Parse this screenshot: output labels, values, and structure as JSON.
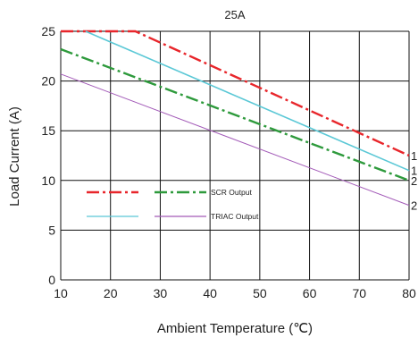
{
  "chart_data": {
    "type": "line",
    "title": "25A",
    "xlabel": "Ambient Temperature (℃)",
    "ylabel": "Load Current (A)",
    "xlim": [
      10,
      80
    ],
    "ylim": [
      0,
      25
    ],
    "x_ticks": [
      "10",
      "20",
      "30",
      "40",
      "50",
      "60",
      "70",
      "80"
    ],
    "y_ticks": [
      "0",
      "5",
      "10",
      "15",
      "20",
      "25"
    ],
    "grid": true,
    "series": [
      {
        "name": "1",
        "color": "#e8262b",
        "style": "dashdot",
        "width": 2.4,
        "x": [
          10,
          25,
          80
        ],
        "y": [
          25,
          25,
          12.5
        ]
      },
      {
        "name": "1",
        "color": "#5bc8d6",
        "style": "solid",
        "width": 1.6,
        "x": [
          15,
          80
        ],
        "y": [
          25,
          11.0
        ]
      },
      {
        "name": "2",
        "color": "#2e9a3c",
        "style": "dashdot",
        "width": 2.4,
        "x": [
          10,
          80
        ],
        "y": [
          23.2,
          10.0
        ]
      },
      {
        "name": "2",
        "color": "#a35bb8",
        "style": "solid",
        "width": 1.0,
        "x": [
          10,
          80
        ],
        "y": [
          20.7,
          7.5
        ]
      }
    ],
    "legend": {
      "placement": "center-left",
      "entries": [
        {
          "label": "SCR Output",
          "colors": [
            "#e8262b",
            "#2e9a3c"
          ],
          "style": "dashdot"
        },
        {
          "label": "TRIAC Output",
          "colors": [
            "#5bc8d6",
            "#a35bb8"
          ],
          "style": "solid"
        }
      ]
    }
  }
}
